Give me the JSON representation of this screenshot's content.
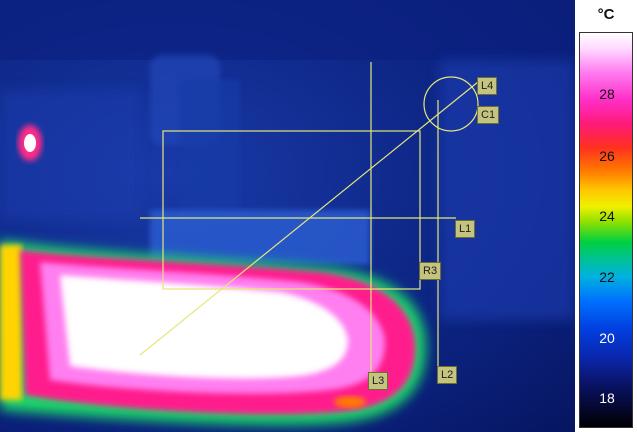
{
  "markers": {
    "l1": "L1",
    "l2": "L2",
    "l3": "L3",
    "l4": "L4",
    "r3": "R3",
    "c1": "C1"
  },
  "scale": {
    "unit": "°C",
    "ticks": [
      "28",
      "26",
      "24",
      "22",
      "20",
      "18"
    ]
  },
  "colors": {
    "marker_line": "#e6e67a",
    "label_bg": "#c4c480"
  }
}
